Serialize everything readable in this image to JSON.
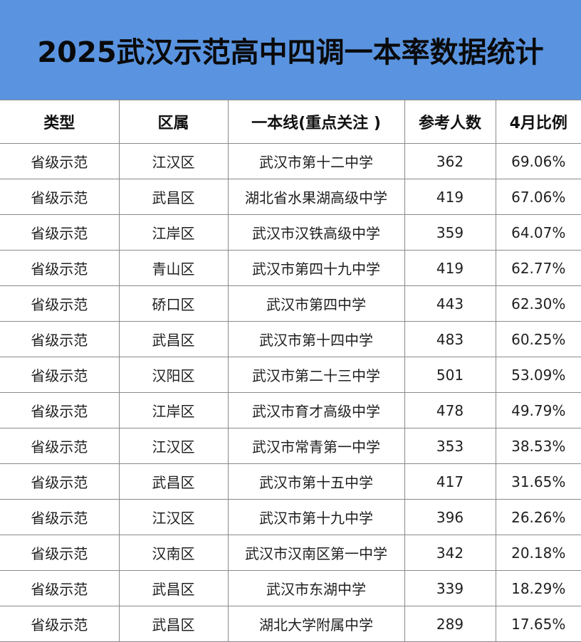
{
  "title": "2025武汉示范高中四调一本率数据统计",
  "headers": [
    "类型",
    "区属",
    "一本线(重点关注 )",
    "参考人数",
    "4月比例"
  ],
  "rows": [
    [
      "省级示范",
      "江汉区",
      "武汉市第十二中学",
      "362",
      "69.06%"
    ],
    [
      "省级示范",
      "武昌区",
      "湖北省水果湖高级中学",
      "419",
      "67.06%"
    ],
    [
      "省级示范",
      "江岸区",
      "武汉市汉铁高级中学",
      "359",
      "64.07%"
    ],
    [
      "省级示范",
      "青山区",
      "武汉市第四十九中学",
      "419",
      "62.77%"
    ],
    [
      "省级示范",
      "硚口区",
      "武汉市第四中学",
      "443",
      "62.30%"
    ],
    [
      "省级示范",
      "武昌区",
      "武汉市第十四中学",
      "483",
      "60.25%"
    ],
    [
      "省级示范",
      "汉阳区",
      "武汉市第二十三中学",
      "501",
      "53.09%"
    ],
    [
      "省级示范",
      "江岸区",
      "武汉市育才高级中学",
      "478",
      "49.79%"
    ],
    [
      "省级示范",
      "江汉区",
      "武汉市常青第一中学",
      "353",
      "38.53%"
    ],
    [
      "省级示范",
      "武昌区",
      "武汉市第十五中学",
      "417",
      "31.65%"
    ],
    [
      "省级示范",
      "江汉区",
      "武汉市第十九中学",
      "396",
      "26.26%"
    ],
    [
      "省级示范",
      "汉南区",
      "武汉市汉南区第一中学",
      "342",
      "20.18%"
    ],
    [
      "省级示范",
      "武昌区",
      "武汉市东湖中学",
      "339",
      "18.29%"
    ],
    [
      "省级示范",
      "武昌区",
      "湖北大学附属中学",
      "289",
      "17.65%"
    ]
  ],
  "colors": {
    "banner": "#5a94e0",
    "border": "#8a8a8a"
  }
}
